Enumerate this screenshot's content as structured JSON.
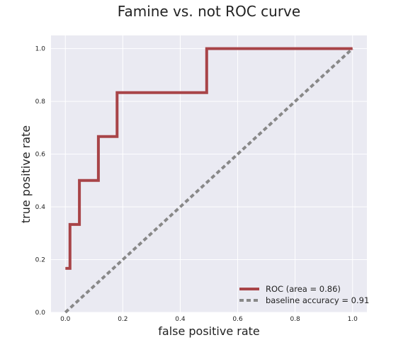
{
  "chart_data": {
    "type": "line",
    "title": "Famine vs. not ROC curve",
    "xlabel": "false positive rate",
    "ylabel": "true positive rate",
    "xlim": [
      -0.05,
      1.05
    ],
    "ylim": [
      0.0,
      1.05
    ],
    "xticks": [
      0.0,
      0.2,
      0.4,
      0.6,
      0.8,
      1.0
    ],
    "xtick_labels": [
      "0.0",
      "0.2",
      "0.4",
      "0.6",
      "0.8",
      "1.0"
    ],
    "yticks": [
      0.0,
      0.2,
      0.4,
      0.6,
      0.8,
      1.0
    ],
    "ytick_labels": [
      "0.0",
      "0.2",
      "0.4",
      "0.6",
      "0.8",
      "1.0"
    ],
    "grid": true,
    "legend_position": "lower-right",
    "series": [
      {
        "name": "ROC (area = 0.86)",
        "style": "solid",
        "color": "#a84448",
        "x": [
          0.0,
          0.016,
          0.016,
          0.049,
          0.049,
          0.115,
          0.115,
          0.18,
          0.18,
          0.492,
          0.492,
          1.0
        ],
        "y": [
          0.1667,
          0.1667,
          0.3333,
          0.3333,
          0.5,
          0.5,
          0.6667,
          0.6667,
          0.8333,
          0.8333,
          1.0,
          1.0
        ]
      },
      {
        "name": "baseline accuracy = 0.91",
        "style": "dashed",
        "color": "#888888",
        "x": [
          0.0,
          1.0
        ],
        "y": [
          0.0,
          1.0
        ]
      }
    ]
  },
  "colors": {
    "plot_background": "#eaeaf2",
    "grid": "#ffffff",
    "roc": "#a84448",
    "baseline": "#888888"
  }
}
